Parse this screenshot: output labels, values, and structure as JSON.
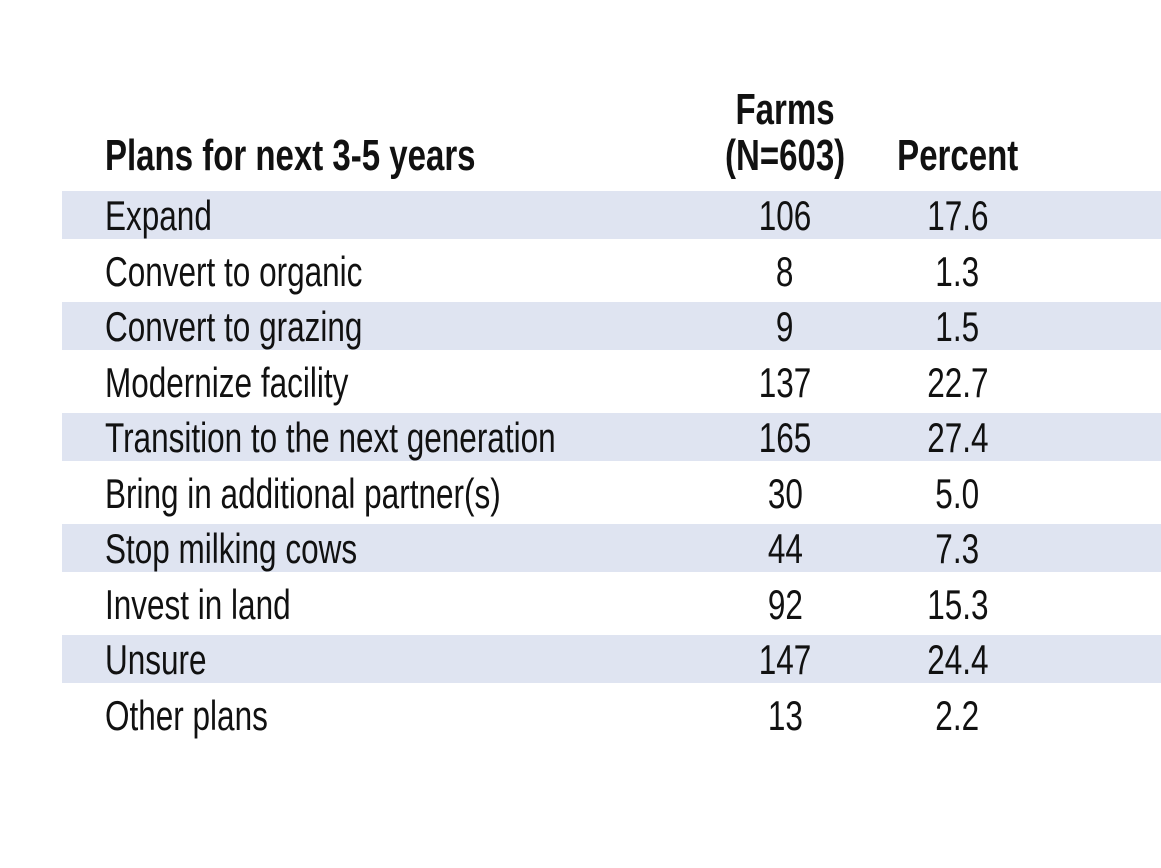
{
  "table": {
    "header": {
      "plans": "Plans for next 3-5 years",
      "farms_line1": "Farms",
      "farms_line2": "(N=603)",
      "percent": "Percent"
    },
    "rows": [
      {
        "label": "Expand",
        "farms": "106",
        "percent": "17.6"
      },
      {
        "label": "Convert to organic",
        "farms": "8",
        "percent": "1.3"
      },
      {
        "label": "Convert to grazing",
        "farms": "9",
        "percent": "1.5"
      },
      {
        "label": "Modernize facility",
        "farms": "137",
        "percent": "22.7"
      },
      {
        "label": "Transition to the next generation",
        "farms": "165",
        "percent": "27.4"
      },
      {
        "label": "Bring in additional partner(s)",
        "farms": "30",
        "percent": "5.0"
      },
      {
        "label": "Stop milking cows",
        "farms": "44",
        "percent": "7.3"
      },
      {
        "label": "Invest in land",
        "farms": "92",
        "percent": "15.3"
      },
      {
        "label": "Unsure",
        "farms": "147",
        "percent": "24.4"
      },
      {
        "label": "Other plans",
        "farms": "13",
        "percent": "2.2"
      }
    ],
    "colors": {
      "stripe": "#dfe4f1",
      "text": "#111111",
      "background": "#ffffff"
    }
  },
  "chart_data": {
    "type": "table",
    "title": "Plans for next 3-5 years",
    "columns": [
      "Plans for next 3-5 years",
      "Farms (N=603)",
      "Percent"
    ],
    "rows": [
      [
        "Expand",
        106,
        17.6
      ],
      [
        "Convert to organic",
        8,
        1.3
      ],
      [
        "Convert to grazing",
        9,
        1.5
      ],
      [
        "Modernize facility",
        137,
        22.7
      ],
      [
        "Transition to the next generation",
        165,
        27.4
      ],
      [
        "Bring in additional partner(s)",
        30,
        5.0
      ],
      [
        "Stop milking cows",
        44,
        7.3
      ],
      [
        "Invest in land",
        92,
        15.3
      ],
      [
        "Unsure",
        147,
        24.4
      ],
      [
        "Other plans",
        13,
        2.2
      ]
    ],
    "n_total": 603,
    "layout": "banded rows, odd data rows shaded light blue"
  }
}
